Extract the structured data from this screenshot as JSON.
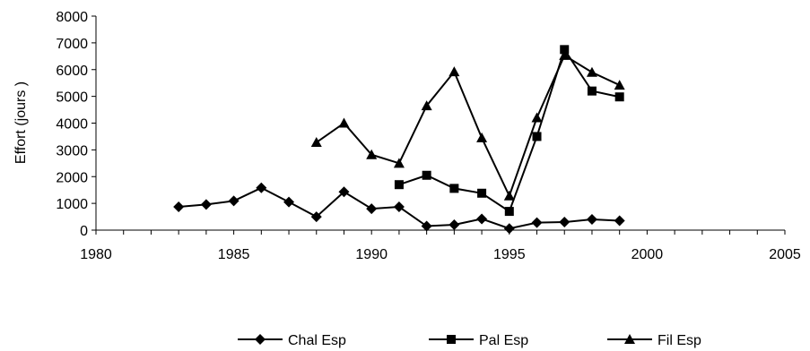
{
  "chart_data": {
    "type": "line",
    "title": "",
    "xlabel": "",
    "ylabel": "Effort (jours )",
    "xlim": [
      1980,
      2005
    ],
    "ylim": [
      0,
      8000
    ],
    "x_ticks": [
      1980,
      1985,
      1990,
      1995,
      2000,
      2005
    ],
    "y_ticks": [
      0,
      1000,
      2000,
      3000,
      4000,
      5000,
      6000,
      7000,
      8000
    ],
    "grid": false,
    "legend_position": "bottom",
    "colors": {
      "line": "#000000"
    },
    "series": [
      {
        "name": "Chal Esp",
        "marker": "diamond",
        "x": [
          1983,
          1984,
          1985,
          1986,
          1987,
          1988,
          1989,
          1990,
          1991,
          1992,
          1993,
          1994,
          1995,
          1996,
          1997,
          1998,
          1999
        ],
        "values": [
          870,
          960,
          1090,
          1580,
          1050,
          500,
          1430,
          800,
          870,
          150,
          200,
          420,
          60,
          280,
          300,
          400,
          350
        ]
      },
      {
        "name": "Pal Esp",
        "marker": "square",
        "x": [
          1991,
          1992,
          1993,
          1994,
          1995,
          1996,
          1997,
          1998,
          1999
        ],
        "values": [
          1700,
          2050,
          1560,
          1380,
          700,
          3500,
          6750,
          5200,
          4980
        ]
      },
      {
        "name": "Fil Esp",
        "marker": "triangle",
        "x": [
          1988,
          1989,
          1990,
          1991,
          1992,
          1993,
          1994,
          1995,
          1996,
          1997,
          1998,
          1999
        ],
        "values": [
          3280,
          4000,
          2820,
          2500,
          4650,
          5920,
          3450,
          1280,
          4200,
          6530,
          5900,
          5420
        ]
      }
    ]
  }
}
